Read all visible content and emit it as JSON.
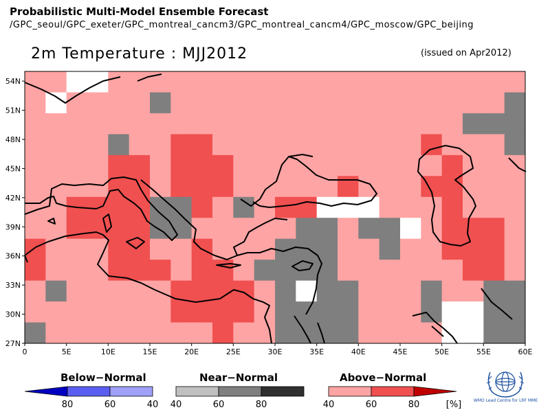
{
  "header": {
    "title": "Probabilistic Multi-Model Ensemble Forecast",
    "models": "/GPC_seoul/GPC_exeter/GPC_montreal_cancm3/GPC_montreal_cancm4/GPC_moscow/GPC_beijing"
  },
  "map": {
    "title": "2m Temperature : MJJ2012",
    "issued": "(issued on Apr2012)",
    "lon_range": [
      0,
      60
    ],
    "lat_range": [
      27,
      55
    ],
    "lat_labels": [
      "54N",
      "51N",
      "48N",
      "45N",
      "42N",
      "39N",
      "36N",
      "33N",
      "30N",
      "27N"
    ],
    "lon_labels": [
      "0",
      "5E",
      "10E",
      "15E",
      "20E",
      "25E",
      "30E",
      "35E",
      "40E",
      "45E",
      "50E",
      "55E",
      "60E"
    ],
    "colors": {
      "above_40": "#ffa4a4",
      "above_60": "#f05050",
      "near_60": "#7f7f7f",
      "white": "#ffffff",
      "coast": "#000000"
    }
  },
  "legend": {
    "below": {
      "title": "Below−Normal",
      "labels": [
        "80",
        "60",
        "40"
      ],
      "colors": [
        "#0000c0",
        "#5a5ef0",
        "#a0a0f8"
      ]
    },
    "near": {
      "title": "Near−Normal",
      "labels": [
        "40",
        "60",
        "80"
      ],
      "colors": [
        "#c0c0c0",
        "#7f7f7f",
        "#303030"
      ]
    },
    "above": {
      "title": "Above−Normal",
      "labels": [
        "40",
        "60",
        "80"
      ],
      "colors": [
        "#ffa4a4",
        "#f05050",
        "#c00000"
      ]
    },
    "unit": "[%]"
  },
  "logo": {
    "icon": "wmo-emblem-icon",
    "text": "WMO Lead Centre for LRF MME"
  }
}
